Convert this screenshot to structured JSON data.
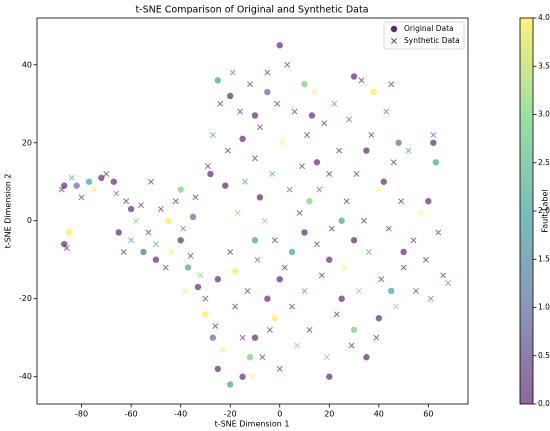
{
  "chart_data": {
    "type": "scatter",
    "title": "t-SNE Comparison of Original and Synthetic Data",
    "xlabel": "t-SNE Dimension 1",
    "ylabel": "t-SNE Dimension 2",
    "xlim": [
      -98,
      76
    ],
    "ylim": [
      -47,
      52
    ],
    "xticks": [
      -80,
      -60,
      -40,
      -20,
      0,
      20,
      40,
      60
    ],
    "yticks": [
      -40,
      -20,
      0,
      20,
      40
    ],
    "colormap": "viridis",
    "alpha": 0.6,
    "legend": "upper right",
    "colorbar": {
      "label": "Fault Label",
      "clim": [
        0,
        4
      ],
      "ticks": [
        {
          "value": 0,
          "label": "0.0"
        },
        {
          "value": 0.5,
          "label": "0.5"
        },
        {
          "value": 1,
          "label": "1.0"
        },
        {
          "value": 1.5,
          "label": "1.5"
        },
        {
          "value": 2,
          "label": "2.0"
        },
        {
          "value": 2.5,
          "label": "2.5"
        },
        {
          "value": 3,
          "label": "3.0"
        },
        {
          "value": 3.5,
          "label": "3.5"
        },
        {
          "value": 4,
          "label": "4.0"
        }
      ]
    },
    "series": [
      {
        "name": "Original Data",
        "marker": "o",
        "legend_color": "#5b2a6e",
        "x": [
          -87,
          -82,
          -77,
          -72,
          -67,
          -87,
          -85,
          -60,
          -55,
          -50,
          -45,
          -40,
          -37,
          -33,
          -30,
          -27,
          -25,
          -20,
          -15,
          -12,
          -10,
          -5,
          -2,
          0,
          5,
          10,
          12,
          15,
          13,
          10,
          0,
          -5,
          -10,
          -15,
          -20,
          -25,
          -28,
          -22,
          -18,
          -35,
          -8,
          20,
          25,
          30,
          35,
          40,
          45,
          50,
          48,
          42,
          35,
          30,
          38,
          25,
          20,
          60,
          63,
          62,
          30,
          -40,
          -65,
          -10,
          -25
        ],
        "values": [
          9,
          9,
          10,
          11,
          10,
          -6,
          -3,
          3,
          -8,
          -10,
          0,
          -5,
          -12,
          -17,
          -24,
          -30,
          -38,
          -42,
          -40,
          -35,
          -30,
          -20,
          -25,
          -15,
          -8,
          -3,
          5,
          15,
          27,
          35,
          45,
          33,
          27,
          21,
          32,
          36,
          12,
          9,
          -13,
          1,
          6,
          -10,
          -20,
          -28,
          -35,
          -25,
          -18,
          -8,
          20,
          10,
          18,
          37,
          33,
          0,
          -40,
          5,
          15,
          20,
          -5,
          8,
          -3,
          -5,
          -15
        ],
        "c": [
          0,
          1,
          2,
          0,
          0,
          0,
          4,
          0,
          1,
          0,
          4,
          0,
          2,
          0,
          4,
          1,
          0,
          2,
          0,
          3,
          0,
          0,
          4,
          0,
          2,
          0,
          3,
          0,
          0,
          3,
          0,
          1,
          0,
          0,
          0,
          2,
          0,
          0,
          4,
          1,
          0,
          0,
          0,
          3,
          0,
          0,
          2,
          0,
          1,
          0,
          0,
          0,
          4,
          2,
          0,
          0,
          2,
          0,
          0,
          3,
          0,
          2,
          0
        ]
      },
      {
        "name": "Synthetic Data",
        "marker": "x",
        "legend_color": "#7a3a8e",
        "x": [
          -88,
          -84,
          -80,
          -75,
          -70,
          -66,
          -62,
          -58,
          -56,
          -53,
          -50,
          -48,
          -46,
          -44,
          -42,
          -39,
          -36,
          -34,
          -32,
          -30,
          -29,
          -27,
          -26,
          -24,
          -23,
          -21,
          -20,
          -19,
          -18,
          -17,
          -16,
          -15,
          -14,
          -13,
          -12,
          -11,
          -10,
          -9,
          -8,
          -7,
          -6,
          -5,
          -4,
          -3,
          -2,
          -1,
          1,
          2,
          3,
          4,
          5,
          6,
          7,
          8,
          9,
          10,
          11,
          12,
          14,
          15,
          16,
          17,
          18,
          19,
          20,
          21,
          22,
          23,
          24,
          26,
          27,
          28,
          29,
          31,
          32,
          33,
          34,
          36,
          37,
          39,
          40,
          41,
          43,
          44,
          46,
          47,
          49,
          50,
          52,
          54,
          55,
          57,
          59,
          61,
          64,
          66,
          68,
          -86,
          -63,
          -38,
          0,
          45,
          62,
          -52,
          -60
        ],
        "values": [
          8,
          11,
          6,
          8,
          12,
          7,
          5,
          0,
          4,
          -3,
          -6,
          3,
          -12,
          -8,
          5,
          -2,
          -9,
          6,
          -14,
          -20,
          14,
          22,
          -27,
          30,
          -33,
          18,
          -8,
          38,
          -22,
          2,
          28,
          -30,
          10,
          -18,
          35,
          -40,
          16,
          -10,
          24,
          -35,
          0,
          38,
          -28,
          12,
          -5,
          30,
          20,
          -12,
          40,
          8,
          -22,
          28,
          -32,
          2,
          14,
          -18,
          22,
          -28,
          33,
          -6,
          8,
          -14,
          25,
          -35,
          12,
          -2,
          30,
          -24,
          18,
          -12,
          5,
          26,
          -32,
          12,
          -18,
          36,
          0,
          -8,
          22,
          -30,
          8,
          -15,
          28,
          -2,
          15,
          -22,
          5,
          -12,
          18,
          -5,
          -18,
          2,
          -10,
          -20,
          -3,
          -14,
          -16,
          -7,
          -8,
          -18,
          -38,
          35,
          22,
          10,
          -5
        ],
        "c": [
          0,
          2,
          0,
          4,
          0,
          1,
          0,
          3,
          0,
          0,
          2,
          0,
          0,
          4,
          0,
          1,
          0,
          0,
          3,
          0,
          0,
          2,
          0,
          0,
          4,
          0,
          0,
          1,
          0,
          3,
          0,
          0,
          2,
          0,
          0,
          4,
          0,
          1,
          0,
          0,
          3,
          0,
          0,
          2,
          0,
          0,
          4,
          0,
          0,
          1,
          0,
          0,
          3,
          0,
          0,
          2,
          0,
          0,
          4,
          0,
          1,
          0,
          0,
          3,
          0,
          0,
          2,
          0,
          0,
          4,
          0,
          1,
          0,
          0,
          3,
          0,
          0,
          2,
          0,
          0,
          4,
          0,
          1,
          0,
          0,
          3,
          0,
          0,
          2,
          0,
          0,
          4,
          0,
          1,
          0,
          0,
          2,
          0,
          0,
          4,
          0,
          0,
          1,
          0,
          2
        ]
      }
    ]
  }
}
